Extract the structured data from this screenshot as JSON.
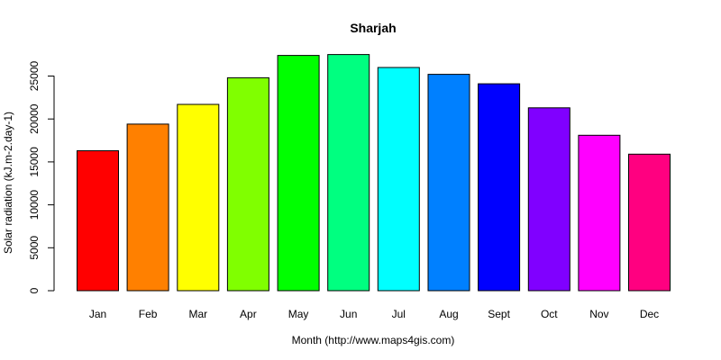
{
  "chart_data": {
    "type": "bar",
    "title": "Sharjah",
    "xlabel": "Month (http://www.maps4gis.com)",
    "ylabel": "Solar radiation (kJ.m-2.day-1)",
    "categories": [
      "Jan",
      "Feb",
      "Mar",
      "Apr",
      "May",
      "Jun",
      "Jul",
      "Aug",
      "Sept",
      "Oct",
      "Nov",
      "Dec"
    ],
    "values": [
      16300,
      19400,
      21700,
      24800,
      27400,
      27500,
      26000,
      25200,
      24100,
      21300,
      18100,
      15900
    ],
    "colors": [
      "#FF0000",
      "#FF8000",
      "#FFFF00",
      "#80FF00",
      "#00FF00",
      "#00FF80",
      "#00FFFF",
      "#0080FF",
      "#0000FF",
      "#8000FF",
      "#FF00FF",
      "#FF0080"
    ],
    "ylim": [
      0,
      25000
    ],
    "yticks": [
      "0",
      "5000",
      "10000",
      "15000",
      "20000",
      "25000"
    ],
    "grid": false,
    "legend": "none"
  }
}
